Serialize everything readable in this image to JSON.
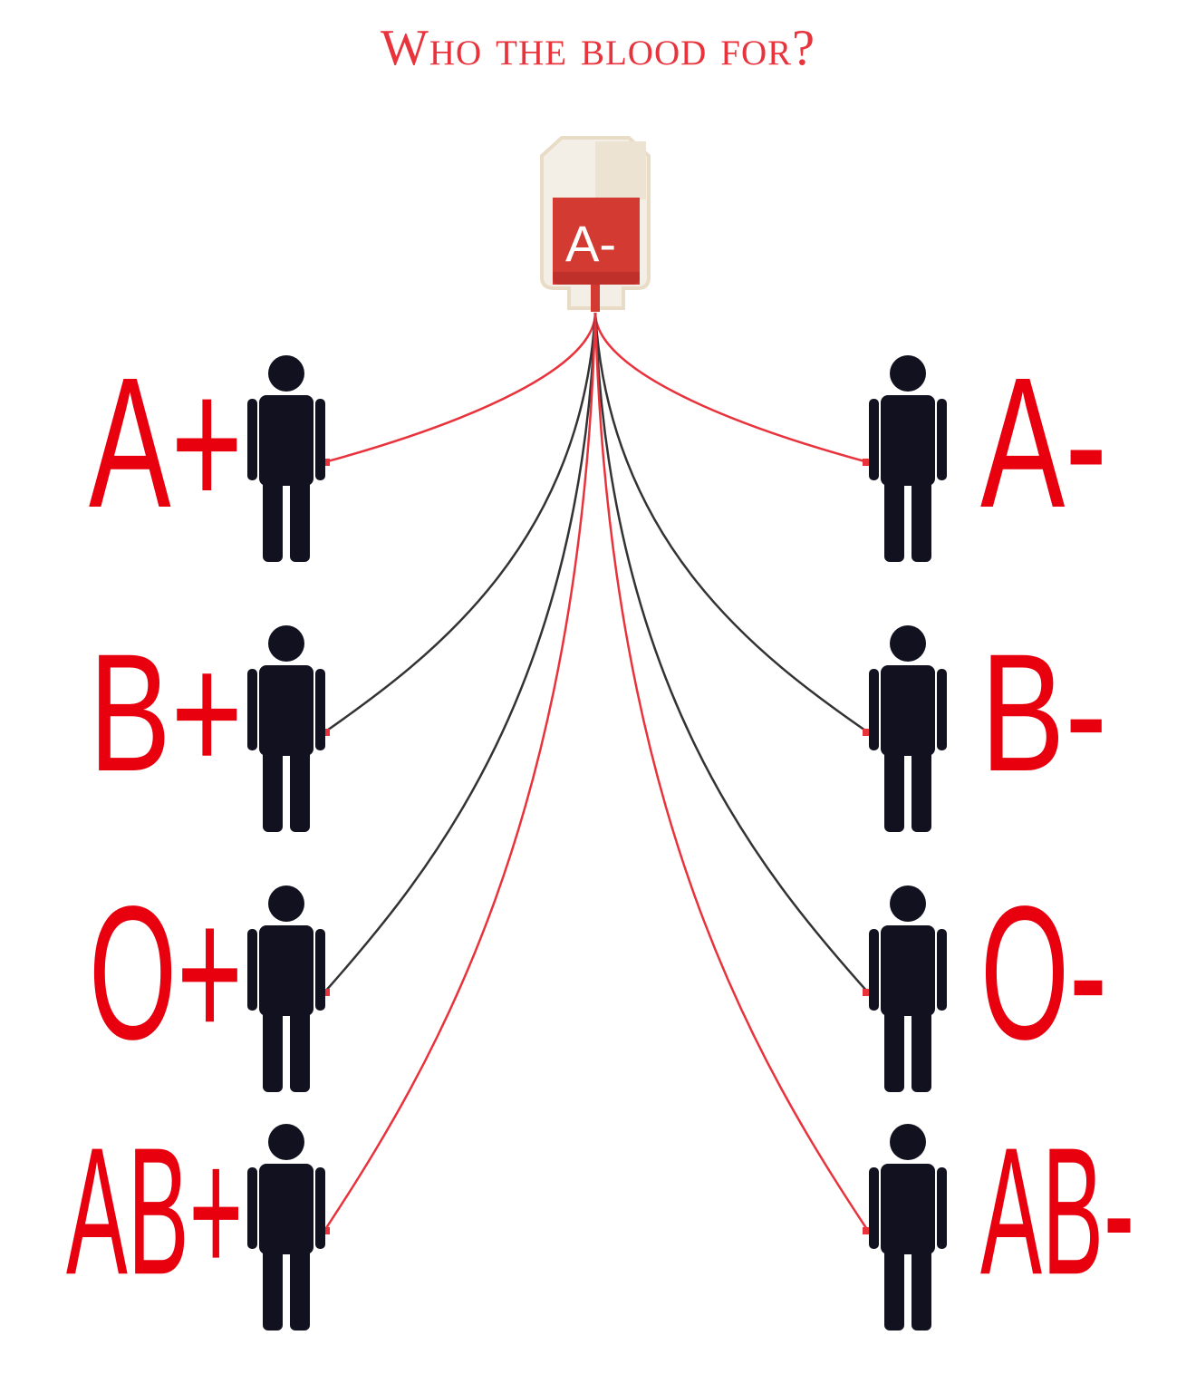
{
  "title": "Who the blood for?",
  "donor": {
    "blood_type": "A-",
    "bag_color": "#d23a32",
    "bag_body_color": "#f4efe6",
    "bag_border_color": "#e8dcc6"
  },
  "colors": {
    "compatible_line": "#e8333c",
    "incompatible_line": "#333333",
    "label": "#e8000f",
    "person": "#12111f"
  },
  "recipients": [
    {
      "blood_type": "A+",
      "compatible": true
    },
    {
      "blood_type": "B+",
      "compatible": false
    },
    {
      "blood_type": "O+",
      "compatible": false
    },
    {
      "blood_type": "AB+",
      "compatible": true
    },
    {
      "blood_type": "A-",
      "compatible": true
    },
    {
      "blood_type": "B-",
      "compatible": false
    },
    {
      "blood_type": "O-",
      "compatible": false
    },
    {
      "blood_type": "AB-",
      "compatible": true
    }
  ]
}
